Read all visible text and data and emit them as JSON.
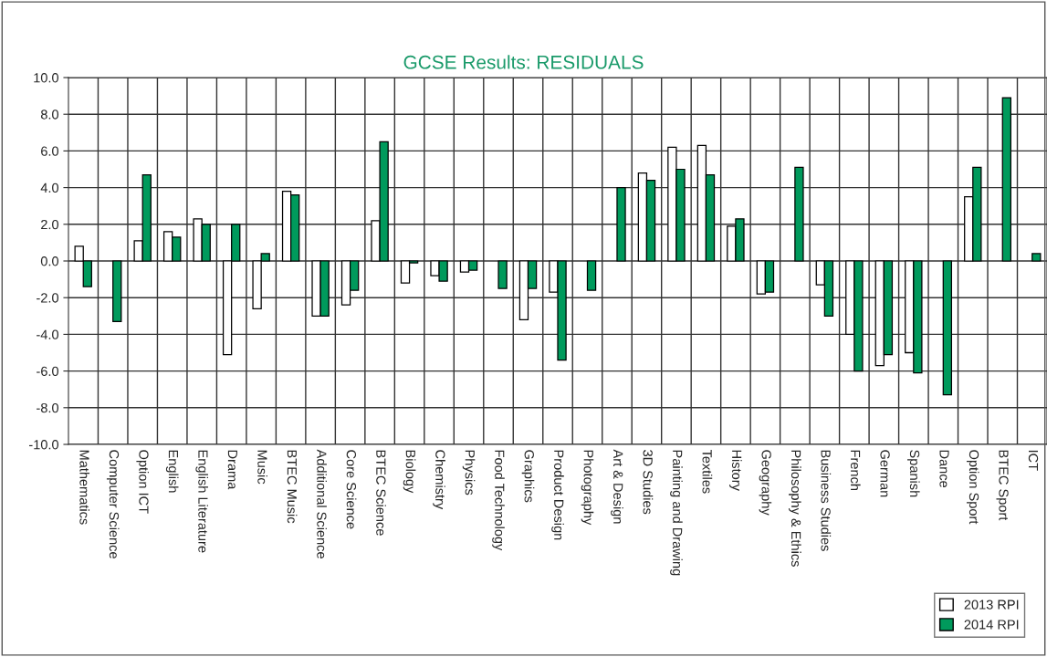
{
  "chart_data": {
    "type": "bar",
    "title": "GCSE Results: RESIDUALS",
    "categories": [
      "Mathematics",
      "Computer Science",
      "Option ICT",
      "English",
      "English Literature",
      "Drama",
      "Music",
      "BTEC Music",
      "Additional Science",
      "Core Science",
      "BTEC Science",
      "Biology",
      "Chemistry",
      "Physics",
      "Food Technology",
      "Graphics",
      "Product Design",
      "Photography",
      "Art & Design",
      "3D Studies",
      "Painting and Drawing",
      "Textiles",
      "History",
      "Geography",
      "Philosophy & Ethics",
      "Business Studies",
      "French",
      "German",
      "Spanish",
      "Dance",
      "Option Sport",
      "BTEC Sport",
      "ICT"
    ],
    "series": [
      {
        "name": "2013 RPI",
        "color": "#ffffff",
        "values": [
          0.8,
          null,
          1.1,
          1.6,
          2.3,
          -5.1,
          -2.6,
          3.8,
          -3.0,
          -2.4,
          2.2,
          -1.2,
          -0.8,
          -0.6,
          null,
          -3.2,
          -1.7,
          null,
          null,
          4.8,
          6.2,
          6.3,
          1.9,
          -1.8,
          null,
          -1.3,
          -4.0,
          -5.7,
          -5.0,
          null,
          3.5,
          null,
          null
        ]
      },
      {
        "name": "2014 RPI",
        "color": "#009a5c",
        "values": [
          -1.4,
          -3.3,
          4.7,
          1.3,
          2.0,
          2.0,
          0.4,
          3.6,
          -3.0,
          -1.6,
          6.5,
          -0.1,
          -1.1,
          -0.5,
          -1.5,
          -1.5,
          -5.4,
          -1.6,
          4.0,
          4.4,
          5.0,
          4.7,
          2.3,
          -1.7,
          5.1,
          -3.0,
          -6.0,
          -5.1,
          -6.1,
          -7.3,
          5.1,
          8.9,
          0.4
        ]
      }
    ],
    "ylim": [
      -10,
      10
    ],
    "yticks": [
      {
        "value": -10,
        "label": "-10.0"
      },
      {
        "value": -8,
        "label": "-8.0"
      },
      {
        "value": -6,
        "label": "-6.0"
      },
      {
        "value": -4,
        "label": "-4.0"
      },
      {
        "value": -2,
        "label": "-2.0"
      },
      {
        "value": 0,
        "label": "0.0"
      },
      {
        "value": 2,
        "label": "2.0"
      },
      {
        "value": 4,
        "label": "4.0"
      },
      {
        "value": 6,
        "label": "6.0"
      },
      {
        "value": 8,
        "label": "8.0"
      },
      {
        "value": 10,
        "label": "10.0"
      }
    ],
    "grid": true,
    "legend": "bottom right"
  }
}
